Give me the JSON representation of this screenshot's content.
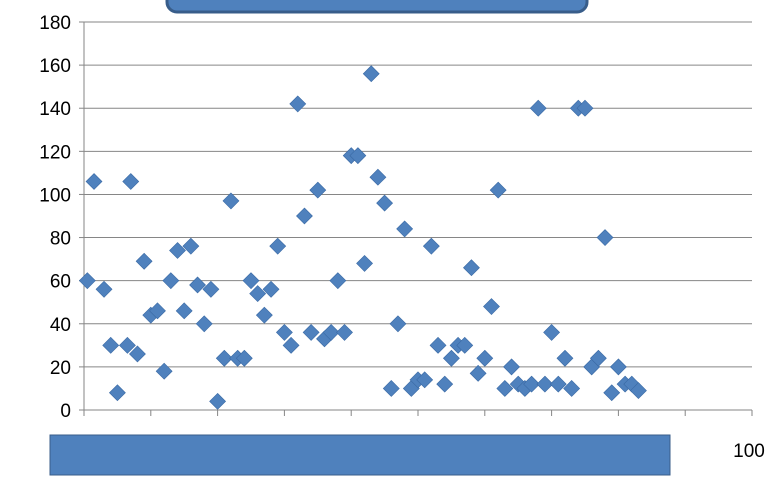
{
  "chart_data": {
    "type": "scatter",
    "title": "",
    "xlabel": "",
    "ylabel": "",
    "xlim": [
      0,
      100
    ],
    "ylim": [
      0,
      180
    ],
    "y_ticks": [
      0,
      20,
      40,
      60,
      80,
      100,
      120,
      140,
      160,
      180
    ],
    "x_ticks": [
      100
    ],
    "grid": "horizontal",
    "legend": "none",
    "series": [
      {
        "marker": "diamond",
        "color": "#4f81bd",
        "points": [
          [
            0.5,
            60
          ],
          [
            1.5,
            106
          ],
          [
            3,
            56
          ],
          [
            4,
            30
          ],
          [
            5,
            8
          ],
          [
            6.5,
            30
          ],
          [
            7,
            106
          ],
          [
            8,
            26
          ],
          [
            9,
            69
          ],
          [
            10,
            44
          ],
          [
            11,
            46
          ],
          [
            12,
            18
          ],
          [
            13,
            60
          ],
          [
            14,
            74
          ],
          [
            15,
            46
          ],
          [
            16,
            76
          ],
          [
            17,
            58
          ],
          [
            18,
            40
          ],
          [
            19,
            56
          ],
          [
            20,
            4
          ],
          [
            21,
            24
          ],
          [
            22,
            97
          ],
          [
            23,
            24
          ],
          [
            24,
            24
          ],
          [
            25,
            60
          ],
          [
            26,
            54
          ],
          [
            27,
            44
          ],
          [
            28,
            56
          ],
          [
            29,
            76
          ],
          [
            30,
            36
          ],
          [
            31,
            30
          ],
          [
            32,
            142
          ],
          [
            33,
            90
          ],
          [
            34,
            36
          ],
          [
            35,
            102
          ],
          [
            36,
            33
          ],
          [
            37,
            36
          ],
          [
            38,
            60
          ],
          [
            39,
            36
          ],
          [
            40,
            118
          ],
          [
            41,
            118
          ],
          [
            42,
            68
          ],
          [
            43,
            156
          ],
          [
            44,
            108
          ],
          [
            45,
            96
          ],
          [
            46,
            10
          ],
          [
            47,
            40
          ],
          [
            48,
            84
          ],
          [
            49,
            10
          ],
          [
            50,
            14
          ],
          [
            51,
            14
          ],
          [
            52,
            76
          ],
          [
            53,
            30
          ],
          [
            54,
            12
          ],
          [
            55,
            24
          ],
          [
            56,
            30
          ],
          [
            57,
            30
          ],
          [
            58,
            66
          ],
          [
            59,
            17
          ],
          [
            60,
            24
          ],
          [
            61,
            48
          ],
          [
            62,
            102
          ],
          [
            63,
            10
          ],
          [
            64,
            20
          ],
          [
            65,
            12
          ],
          [
            66,
            10
          ],
          [
            67,
            12
          ],
          [
            68,
            140
          ],
          [
            69,
            12
          ],
          [
            70,
            36
          ],
          [
            71,
            12
          ],
          [
            72,
            24
          ],
          [
            73,
            10
          ],
          [
            74,
            140
          ],
          [
            75,
            140
          ],
          [
            76,
            20
          ],
          [
            77,
            24
          ],
          [
            78,
            80
          ],
          [
            79,
            8
          ],
          [
            80,
            20
          ],
          [
            81,
            12
          ],
          [
            82,
            12
          ],
          [
            83,
            9
          ]
        ]
      }
    ]
  }
}
